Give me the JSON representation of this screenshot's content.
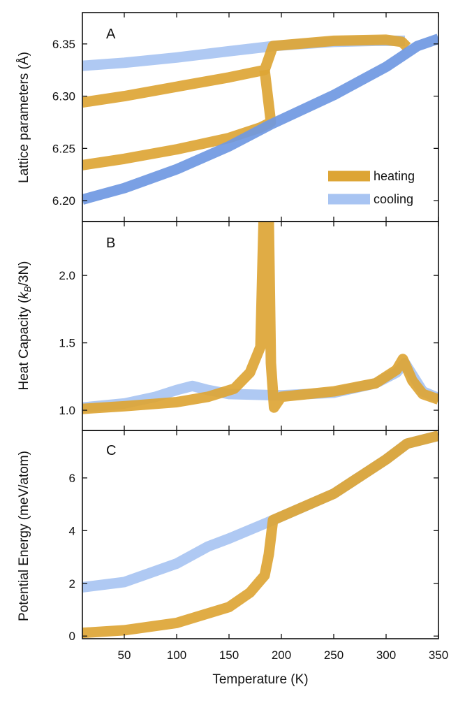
{
  "colors": {
    "heating": "#dda535",
    "cooling": "#a8c4f2",
    "cooling_dark": "#6f98e2",
    "overlap": "#9b9b8e"
  },
  "chart_data": {
    "type": "line",
    "x_axis": {
      "label": "Temperature (K)",
      "lim": [
        10,
        350
      ],
      "ticks": [
        50,
        100,
        150,
        200,
        250,
        300,
        350
      ],
      "tick_labels": [
        "50",
        "100",
        "150",
        "200",
        "250",
        "300",
        "350"
      ]
    },
    "legend": {
      "entries": [
        "heating",
        "cooling"
      ],
      "placement": "bottom-right of panel A"
    },
    "panels": [
      {
        "label": "A",
        "ylabel_main": "Lattice parameters (",
        "ylabel_unit": "Å",
        "ylabel_close": ")",
        "ylim": [
          6.18,
          6.38
        ],
        "yticks": [
          6.2,
          6.25,
          6.3,
          6.35
        ],
        "ytick_labels": [
          "6.20",
          "6.25",
          "6.30",
          "6.35"
        ],
        "series": [
          {
            "name": "cooling",
            "role": "cooling",
            "x": [
              10,
              50,
              100,
              150,
              193,
              250,
              290,
              318
            ],
            "y": [
              6.329,
              6.332,
              6.337,
              6.343,
              6.348,
              6.352,
              6.353,
              6.353
            ]
          },
          {
            "name": "heating",
            "role": "heating",
            "x": [
              10,
              50,
              100,
              150,
              184,
              192,
              250,
              300,
              315,
              320
            ],
            "y": [
              6.294,
              6.3,
              6.309,
              6.318,
              6.325,
              6.348,
              6.353,
              6.354,
              6.352,
              6.347
            ]
          },
          {
            "name": "heating",
            "role": "heating",
            "x": [
              10,
              50,
              100,
              150,
              180,
              190,
              184
            ],
            "y": [
              6.234,
              6.24,
              6.249,
              6.26,
              6.27,
              6.275,
              6.325
            ]
          },
          {
            "name": "cooling",
            "role": "cooling_dark",
            "x": [
              10,
              50,
              100,
              150,
              190,
              250,
              300,
              330,
              350
            ],
            "y": [
              6.201,
              6.212,
              6.23,
              6.252,
              6.273,
              6.301,
              6.328,
              6.348,
              6.355
            ]
          }
        ]
      },
      {
        "label": "B",
        "ylabel_main": "Heat Capacity (",
        "ylabel_unit": "k",
        "ylabel_sub": "B",
        "ylabel_close": "/3N)",
        "ylim": [
          0.85,
          2.4
        ],
        "yticks": [
          1.0,
          1.5,
          2.0
        ],
        "ytick_labels": [
          "1.0",
          "1.5",
          "2.0"
        ],
        "series": [
          {
            "name": "cooling",
            "role": "cooling",
            "x": [
              10,
              50,
              80,
              100,
              115,
              130,
              150,
              200,
              250,
              290,
              310,
              318,
              335,
              350
            ],
            "y": [
              1.02,
              1.05,
              1.1,
              1.15,
              1.18,
              1.15,
              1.12,
              1.11,
              1.13,
              1.2,
              1.28,
              1.35,
              1.14,
              1.09
            ]
          },
          {
            "name": "heating",
            "role": "heating",
            "x": [
              10,
              50,
              100,
              130,
              155,
              170,
              180,
              183,
              185,
              188,
              190,
              193,
              200,
              250,
              290,
              310,
              316,
              325,
              335,
              350
            ],
            "y": [
              1.01,
              1.03,
              1.06,
              1.1,
              1.16,
              1.28,
              1.47,
              2.4,
              2.4,
              2.4,
              1.35,
              1.02,
              1.1,
              1.14,
              1.2,
              1.3,
              1.38,
              1.22,
              1.12,
              1.08
            ]
          }
        ]
      },
      {
        "label": "C",
        "ylabel_main": "Potential Energy (meV/atom)",
        "ylim": [
          -0.1,
          7.8
        ],
        "yticks": [
          0,
          2,
          4,
          6
        ],
        "ytick_labels": [
          "0",
          "2",
          "4",
          "6"
        ],
        "series": [
          {
            "name": "cooling",
            "role": "cooling",
            "x": [
              10,
              50,
              100,
              130,
              150,
              192,
              250,
              300,
              320,
              350
            ],
            "y": [
              1.85,
              2.05,
              2.75,
              3.4,
              3.7,
              4.4,
              5.4,
              6.7,
              7.3,
              7.6
            ]
          },
          {
            "name": "heating",
            "role": "heating",
            "x": [
              10,
              50,
              100,
              150,
              170,
              184,
              188,
              192,
              250,
              300,
              320,
              350
            ],
            "y": [
              0.12,
              0.22,
              0.5,
              1.1,
              1.65,
              2.3,
              3.1,
              4.4,
              5.4,
              6.7,
              7.3,
              7.6
            ]
          }
        ]
      }
    ]
  }
}
